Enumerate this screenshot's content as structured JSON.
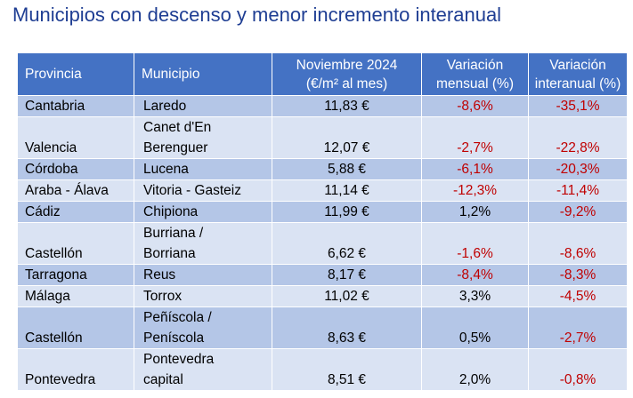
{
  "title": "Municipios con descenso y menor incremento interanual",
  "table": {
    "headers": {
      "provincia": "Provincia",
      "municipio": "Municipio",
      "precio_l1": "Noviembre 2024",
      "precio_l2": "(€/m² al mes)",
      "mensual_l1": "Variación",
      "mensual_l2": "mensual (%)",
      "interanual_l1": "Variación",
      "interanual_l2": "interanual (%)"
    },
    "rows": [
      {
        "provincia": "Cantabria",
        "municipio_l1": "Laredo",
        "municipio_l2": "",
        "precio": "11,83 €",
        "mensual": "-8,6%",
        "interanual": "-35,1%"
      },
      {
        "provincia": "Valencia",
        "municipio_l1": "Canet d'En",
        "municipio_l2": "Berenguer",
        "precio": "12,07 €",
        "mensual": "-2,7%",
        "interanual": "-22,8%"
      },
      {
        "provincia": "Córdoba",
        "municipio_l1": "Lucena",
        "municipio_l2": "",
        "precio": "5,88 €",
        "mensual": "-6,1%",
        "interanual": "-20,3%"
      },
      {
        "provincia": "Araba - Álava",
        "municipio_l1": "Vitoria - Gasteiz",
        "municipio_l2": "",
        "precio": "11,14 €",
        "mensual": "-12,3%",
        "interanual": "-11,4%"
      },
      {
        "provincia": "Cádiz",
        "municipio_l1": "Chipiona",
        "municipio_l2": "",
        "precio": "11,99 €",
        "mensual": "1,2%",
        "interanual": "-9,2%"
      },
      {
        "provincia": "Castellón",
        "municipio_l1": "Burriana /",
        "municipio_l2": "Borriana",
        "precio": "6,62 €",
        "mensual": "-1,6%",
        "interanual": "-8,6%"
      },
      {
        "provincia": "Tarragona",
        "municipio_l1": "Reus",
        "municipio_l2": "",
        "precio": "8,17 €",
        "mensual": "-8,4%",
        "interanual": "-8,3%"
      },
      {
        "provincia": "Málaga",
        "municipio_l1": "Torrox",
        "municipio_l2": "",
        "precio": "11,02 €",
        "mensual": "3,3%",
        "interanual": "-4,5%"
      },
      {
        "provincia": "Castellón",
        "municipio_l1": "Peñíscola /",
        "municipio_l2": "Peníscola",
        "precio": "8,63 €",
        "mensual": "0,5%",
        "interanual": "-2,7%"
      },
      {
        "provincia": "Pontevedra",
        "municipio_l1": "Pontevedra",
        "municipio_l2": "capital",
        "precio": "8,51 €",
        "mensual": "2,0%",
        "interanual": "-0,8%"
      }
    ]
  }
}
